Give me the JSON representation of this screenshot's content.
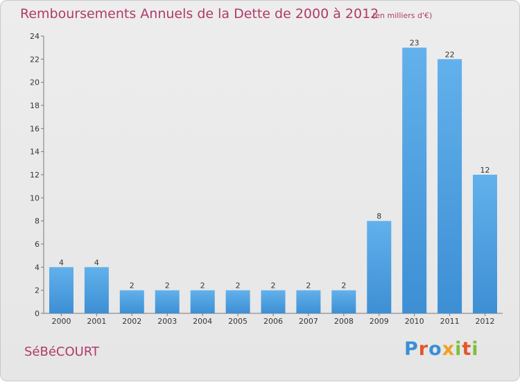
{
  "chart_data": {
    "type": "bar",
    "title": "Remboursements Annuels de la Dette de 2000 à 2012",
    "subtitle": "(en milliers d'€)",
    "categories": [
      "2000",
      "2001",
      "2002",
      "2003",
      "2004",
      "2005",
      "2006",
      "2007",
      "2008",
      "2009",
      "2010",
      "2011",
      "2012"
    ],
    "values": [
      4,
      4,
      2,
      2,
      2,
      2,
      2,
      2,
      2,
      8,
      23,
      22,
      12
    ],
    "ylim": [
      0,
      24
    ],
    "yticks": [
      0,
      2,
      4,
      6,
      8,
      10,
      12,
      14,
      16,
      18,
      20,
      22,
      24
    ],
    "grid": false,
    "bar_color": "#3d8fd4",
    "bar_color_light": "#62b1ec"
  },
  "footer": {
    "commune": "SéBéCOURT",
    "logo": "Proxiti"
  },
  "colors": {
    "title": "#b03a68",
    "logo_letters": [
      "#3a8fd6",
      "#e2572b",
      "#3a8fd6",
      "#f0a020",
      "#7cbf3c",
      "#e2572b",
      "#7cbf3c"
    ]
  }
}
